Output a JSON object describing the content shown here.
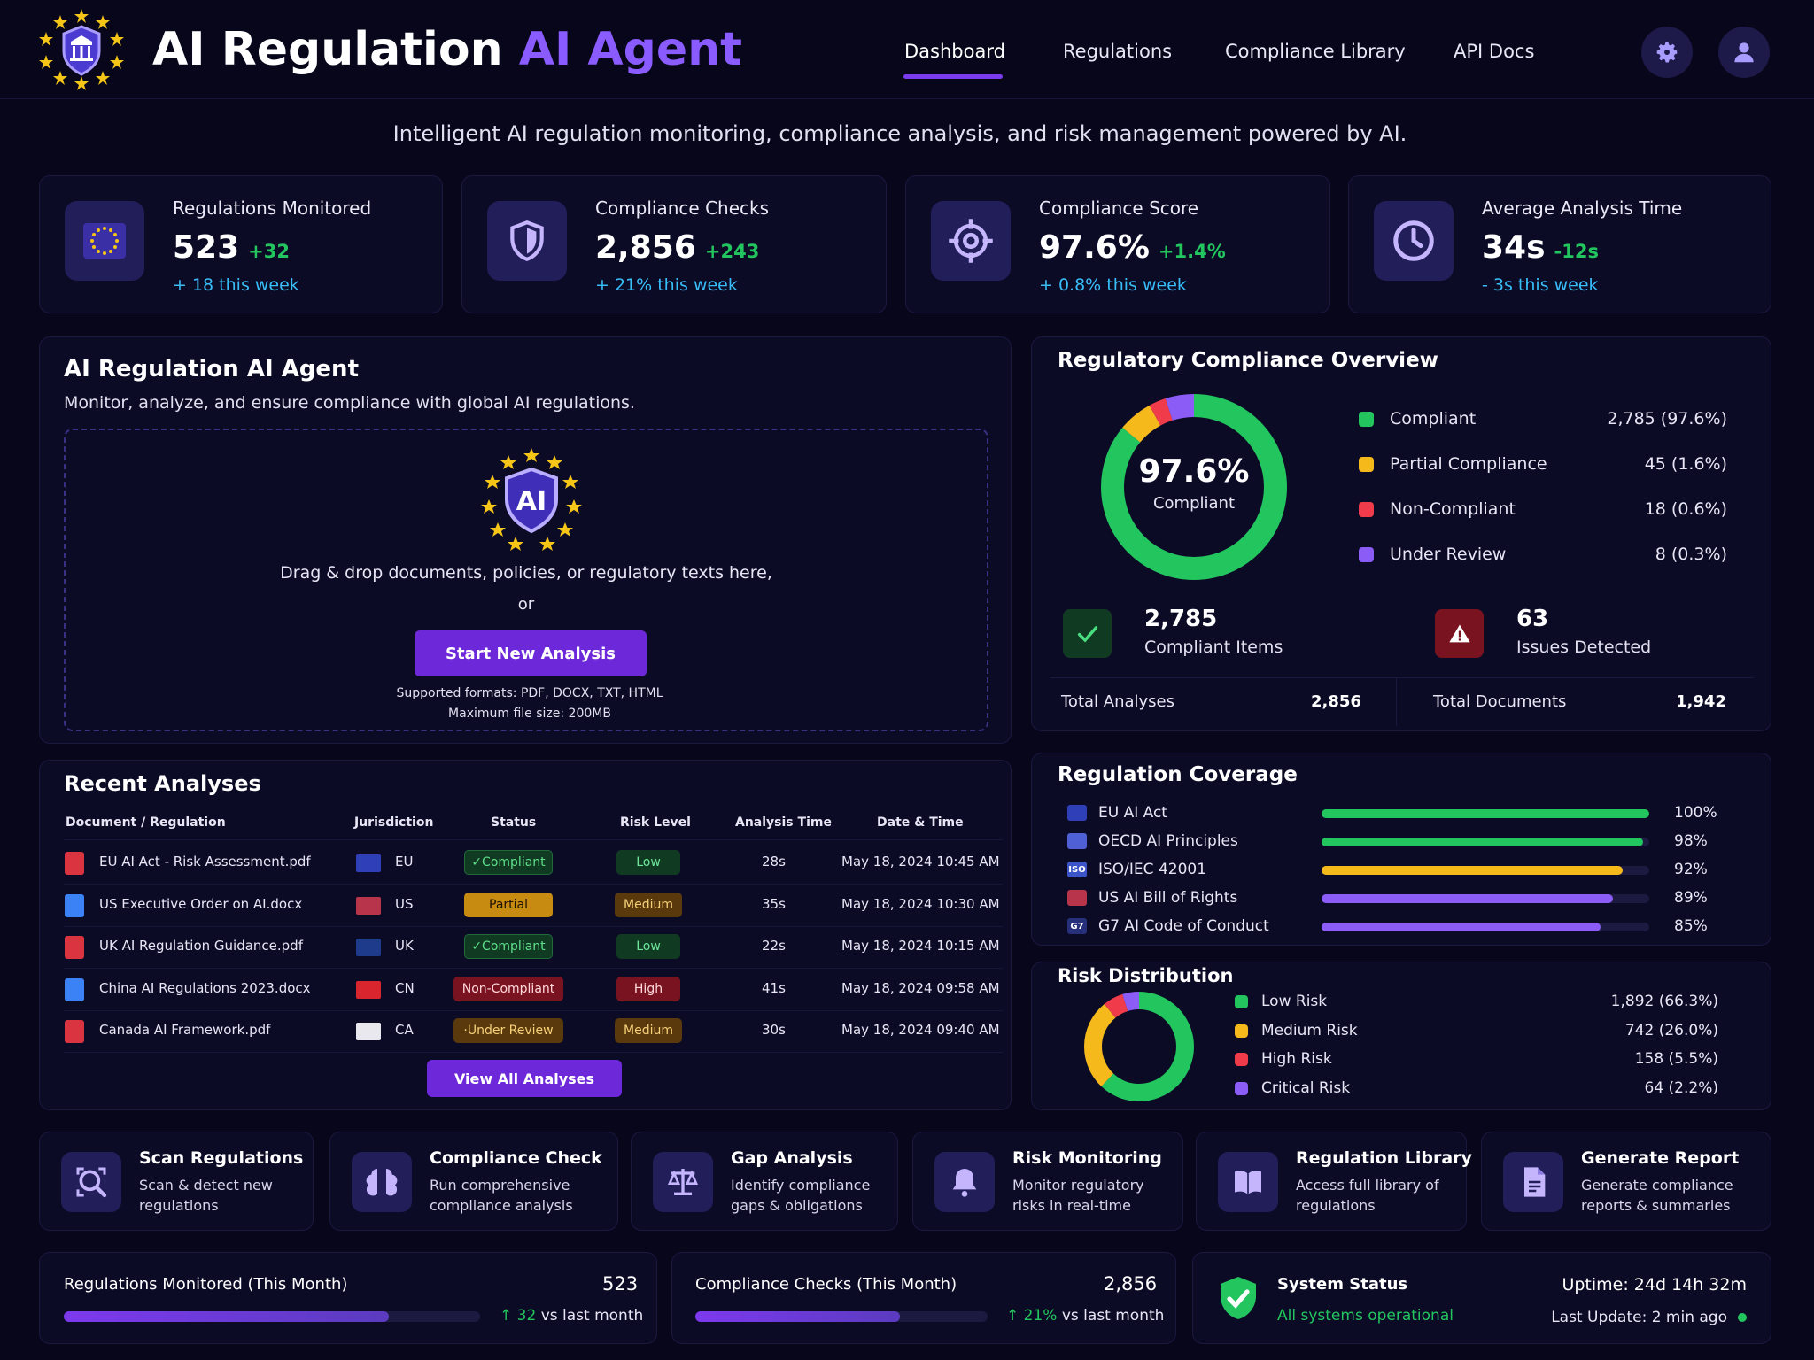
{
  "header": {
    "title_main": "AI Regulation",
    "title_accent": "AI Agent",
    "nav": [
      "Dashboard",
      "Regulations",
      "Compliance Library",
      "API Docs"
    ],
    "settings_icon": "gear-icon",
    "user_icon": "user-icon"
  },
  "tagline": "Intelligent AI regulation monitoring, compliance analysis, and risk management powered by AI.",
  "stats": [
    {
      "label": "Regulations Monitored",
      "value": "523",
      "delta": "+32",
      "week": "+ 18 this week",
      "icon": "eu-flag-icon"
    },
    {
      "label": "Compliance Checks",
      "value": "2,856",
      "delta": "+243",
      "week": "+ 21% this week",
      "icon": "shield-icon"
    },
    {
      "label": "Compliance Score",
      "value": "97.6%",
      "delta": "+1.4%",
      "week": "+ 0.8% this week",
      "icon": "target-icon"
    },
    {
      "label": "Average Analysis Time",
      "value": "34s",
      "delta": "-12s",
      "week": "- 3s this week",
      "icon": "clock-icon"
    }
  ],
  "agent": {
    "title": "AI Regulation AI Agent",
    "subtitle": "Monitor, analyze, and ensure compliance with global AI regulations.",
    "badge": "AI",
    "drop_text": "Drag & drop documents, policies, or regulatory texts here,",
    "or": "or",
    "button": "Start New Analysis",
    "formats": "Supported formats: PDF, DOCX, TXT, HTML",
    "max_size": "Maximum file size: 200MB"
  },
  "overview": {
    "title": "Regulatory Compliance Overview",
    "center_value": "97.6%",
    "center_label": "Compliant",
    "legend": [
      {
        "label": "Compliant",
        "value": "2,785 (97.6%)",
        "color": "#22c55e",
        "share": 97.6
      },
      {
        "label": "Partial Compliance",
        "value": "45  (1.6%)",
        "color": "#f5b91c",
        "share": 1.6
      },
      {
        "label": "Non-Compliant",
        "value": "18  (0.6%)",
        "color": "#ef3b4a",
        "share": 0.6
      },
      {
        "label": "Under Review",
        "value": "8  (0.3%)",
        "color": "#8b5cf6",
        "share": 0.3
      }
    ],
    "compliant_items_value": "2,785",
    "compliant_items_label": "Compliant Items",
    "issues_value": "63",
    "issues_label": "Issues Detected",
    "total_analyses_label": "Total Analyses",
    "total_analyses_value": "2,856",
    "total_documents_label": "Total Documents",
    "total_documents_value": "1,942"
  },
  "recent": {
    "title": "Recent Analyses",
    "columns": [
      "Document / Regulation",
      "Jurisdiction",
      "Status",
      "Risk Level",
      "Analysis Time",
      "Date & Time"
    ],
    "rows": [
      {
        "doc": "EU AI Act - Risk Assessment.pdf",
        "type": "pdf",
        "jur": "EU",
        "status": "✓Compliant",
        "status_kind": "comp",
        "risk": "Low",
        "risk_kind": "low",
        "time": "28s",
        "date": "May 18, 2024 10:45 AM"
      },
      {
        "doc": "US Executive Order on AI.docx",
        "type": "docx",
        "jur": "US",
        "status": "Partial",
        "status_kind": "part",
        "risk": "Medium",
        "risk_kind": "med",
        "time": "35s",
        "date": "May 18, 2024 10:30 AM"
      },
      {
        "doc": "UK AI Regulation Guidance.pdf",
        "type": "pdf",
        "jur": "UK",
        "status": "✓Compliant",
        "status_kind": "comp",
        "risk": "Low",
        "risk_kind": "low",
        "time": "22s",
        "date": "May 18, 2024 10:15 AM"
      },
      {
        "doc": "China AI Regulations 2023.docx",
        "type": "docx",
        "jur": "CN",
        "status": "Non-Compliant",
        "status_kind": "non",
        "risk": "High",
        "risk_kind": "high",
        "time": "41s",
        "date": "May 18, 2024 09:58 AM"
      },
      {
        "doc": "Canada AI Framework.pdf",
        "type": "pdf",
        "jur": "CA",
        "status": "·Under Review",
        "status_kind": "rev",
        "risk": "Medium",
        "risk_kind": "med",
        "time": "30s",
        "date": "May 18, 2024 09:40 AM"
      }
    ],
    "button": "View All Analyses"
  },
  "coverage": {
    "title": "Regulation Coverage",
    "items": [
      {
        "label": "EU AI Act",
        "pct": 100,
        "pct_text": "100%",
        "color": "#22c55e",
        "icon": "eu-flag-icon",
        "icon_text": ""
      },
      {
        "label": "OECD AI Principles",
        "pct": 98,
        "pct_text": "98%",
        "color": "#22c55e",
        "icon": "globe-icon",
        "icon_text": ""
      },
      {
        "label": "ISO/IEC 42001",
        "pct": 92,
        "pct_text": "92%",
        "color": "#f5b91c",
        "icon": "iso-icon",
        "icon_text": "ISO"
      },
      {
        "label": "US AI Bill of Rights",
        "pct": 89,
        "pct_text": "89%",
        "color": "#8b5cf6",
        "icon": "us-flag-icon",
        "icon_text": ""
      },
      {
        "label": "G7 AI Code of Conduct",
        "pct": 85,
        "pct_text": "85%",
        "color": "#8b5cf6",
        "icon": "g7-icon",
        "icon_text": "G7"
      }
    ]
  },
  "risk": {
    "title": "Risk Distribution",
    "items": [
      {
        "label": "Low Risk",
        "value": "1,892 (66.3%)",
        "share": 66.3,
        "color": "#22c55e"
      },
      {
        "label": "Medium Risk",
        "value": "742 (26.0%)",
        "share": 26.0,
        "color": "#f5b91c"
      },
      {
        "label": "High Risk",
        "value": "158  (5.5%)",
        "share": 5.5,
        "color": "#ef3b4a"
      },
      {
        "label": "Critical Risk",
        "value": "64  (2.2%)",
        "share": 2.2,
        "color": "#8b5cf6"
      }
    ]
  },
  "tools": [
    {
      "title": "Scan Regulations",
      "desc": "Scan & detect new regulations",
      "icon": "scan-icon"
    },
    {
      "title": "Compliance Check",
      "desc": "Run comprehensive compliance analysis",
      "icon": "brain-icon"
    },
    {
      "title": "Gap Analysis",
      "desc": "Identify compliance gaps & obligations",
      "icon": "scales-icon"
    },
    {
      "title": "Risk Monitoring",
      "desc": "Monitor regulatory risks in real-time",
      "icon": "bell-icon"
    },
    {
      "title": "Regulation Library",
      "desc": "Access full library of regulations",
      "icon": "book-icon"
    },
    {
      "title": "Generate Report",
      "desc": "Generate compliance reports & summaries",
      "icon": "report-icon"
    }
  ],
  "bottom": {
    "reg_label": "Regulations Monitored (This Month)",
    "reg_value": "523",
    "reg_delta": "32",
    "reg_delta_suffix": "vs last month",
    "reg_progress": 0.78,
    "checks_label": "Compliance Checks (This Month)",
    "checks_value": "2,856",
    "checks_delta": "21%",
    "checks_delta_suffix": "vs last month",
    "checks_progress": 0.7,
    "system_title": "System Status",
    "system_text": "All systems operational",
    "uptime": "Uptime: 24d 14h 32m",
    "last_update": "Last Update: 2 min ago"
  },
  "colors": {
    "accent": "#7c3aed",
    "success": "#22c55e",
    "warning": "#f5b91c",
    "danger": "#ef3b4a",
    "info": "#38bdf8"
  }
}
